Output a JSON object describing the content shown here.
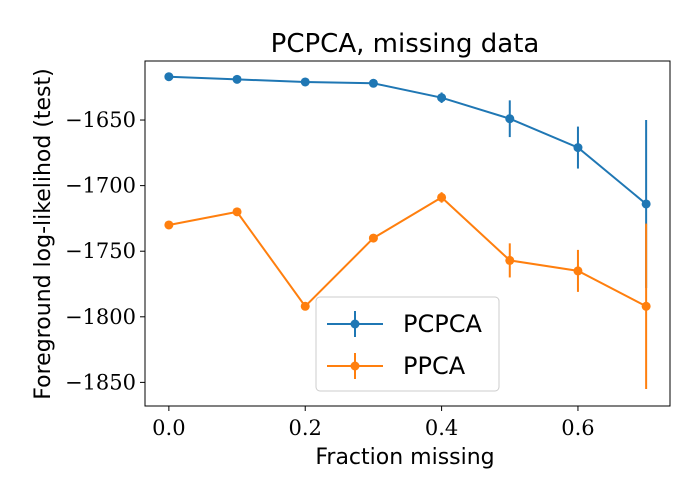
{
  "chart_data": {
    "type": "line",
    "title": "PCPCA, missing data",
    "xlabel": "Fraction missing",
    "ylabel": "Foreground log-likelihod (test)",
    "x": [
      0.0,
      0.1,
      0.2,
      0.3,
      0.4,
      0.5,
      0.6,
      0.7
    ],
    "xlim": [
      -0.035,
      0.735
    ],
    "ylim": [
      -1868,
      -1605
    ],
    "xticks": [
      0.0,
      0.2,
      0.4,
      0.6
    ],
    "xtick_labels": [
      "0.0",
      "0.2",
      "0.4",
      "0.6"
    ],
    "yticks": [
      -1650,
      -1700,
      -1750,
      -1800,
      -1850
    ],
    "ytick_labels": [
      "−1650",
      "−1700",
      "−1750",
      "−1800",
      "−1850"
    ],
    "series": [
      {
        "name": "PCPCA",
        "color": "#1f77b4",
        "values": [
          -1617,
          -1619,
          -1621,
          -1622,
          -1633,
          -1649,
          -1671,
          -1714
        ],
        "errors": [
          0,
          0,
          0,
          0,
          4,
          14,
          16,
          64
        ]
      },
      {
        "name": "PPCA",
        "color": "#ff7f0e",
        "values": [
          -1730,
          -1720,
          -1792,
          -1740,
          -1709,
          -1757,
          -1765,
          -1792
        ],
        "errors": [
          0,
          0,
          0,
          0,
          4,
          13,
          16,
          63
        ]
      }
    ],
    "legend_position": "lower-center",
    "grid": false
  }
}
